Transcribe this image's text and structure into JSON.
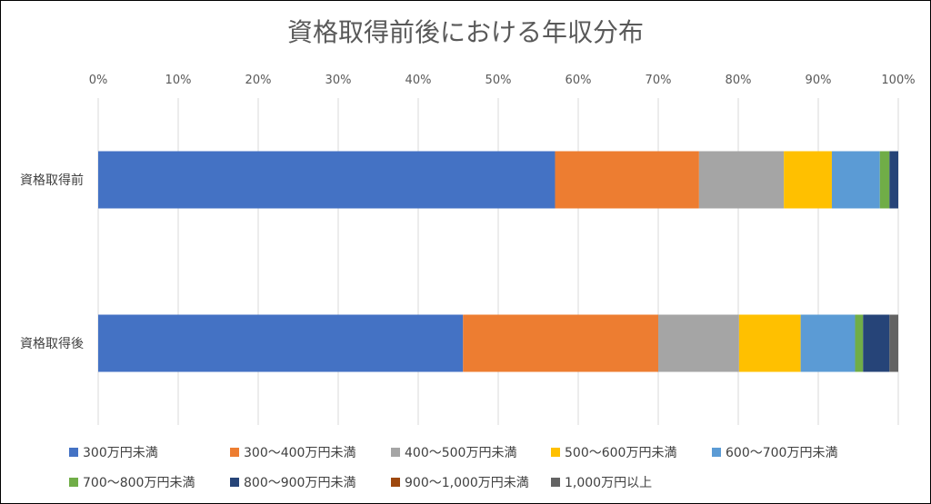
{
  "chart_data": {
    "type": "bar",
    "orientation": "horizontal",
    "stacked": "percent",
    "title": "資格取得前後における年収分布",
    "xlabel": "",
    "ylabel": "",
    "xlim": [
      0,
      100
    ],
    "x_ticks": [
      "0%",
      "10%",
      "20%",
      "30%",
      "40%",
      "50%",
      "60%",
      "70%",
      "80%",
      "90%",
      "100%"
    ],
    "grid": true,
    "legend_position": "bottom",
    "categories": [
      "資格取得前",
      "資格取得後"
    ],
    "series": [
      {
        "name": "300万円未満",
        "color": "#4472C4",
        "values": [
          57.1,
          45.6
        ]
      },
      {
        "name": "300～400万円未満",
        "color": "#ED7D31",
        "values": [
          18.0,
          24.4
        ]
      },
      {
        "name": "400～500万円未満",
        "color": "#A5A5A5",
        "values": [
          10.6,
          10.1
        ]
      },
      {
        "name": "500～600万円未満",
        "color": "#FFC000",
        "values": [
          6.0,
          7.7
        ]
      },
      {
        "name": "600～700万円未満",
        "color": "#5B9BD5",
        "values": [
          6.0,
          6.8
        ]
      },
      {
        "name": "700～800万円未満",
        "color": "#70AD47",
        "values": [
          1.2,
          1.0
        ]
      },
      {
        "name": "800～900万円未満",
        "color": "#264478",
        "values": [
          1.1,
          3.3
        ]
      },
      {
        "name": "900～1,000万円未満",
        "color": "#9E480E",
        "values": [
          0.0,
          0.0
        ]
      },
      {
        "name": "1,000万円以上",
        "color": "#636363",
        "values": [
          0.0,
          1.1
        ]
      }
    ]
  }
}
